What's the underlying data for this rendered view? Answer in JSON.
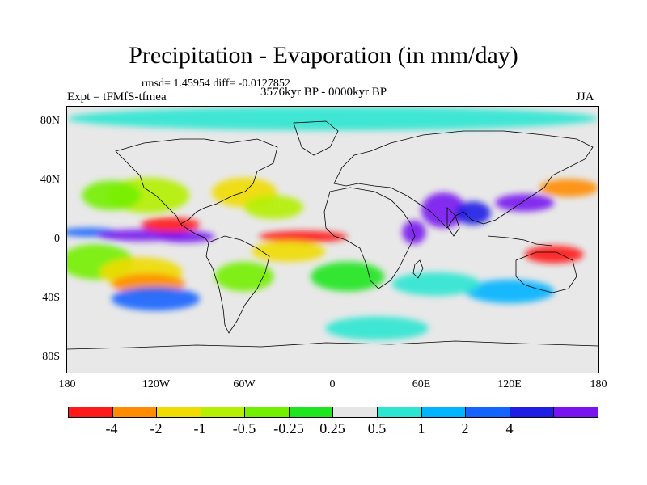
{
  "title": "Precipitation - Evaporation (in mm/day)",
  "stats": "rmsd= 1.45954 diff= -0.0127852",
  "experiment": "Expt = tFMfS-tfmea",
  "period": "3576kyr BP - 0000kyr BP",
  "season": "JJA",
  "map": {
    "projection": "cylindrical-equidistant",
    "lon_range": [
      -180,
      180
    ],
    "lat_range": [
      -90,
      90
    ],
    "y_ticks": [
      {
        "lat": 80,
        "label": "80N"
      },
      {
        "lat": 40,
        "label": "40N"
      },
      {
        "lat": 0,
        "label": "0"
      },
      {
        "lat": -40,
        "label": "40S"
      },
      {
        "lat": -80,
        "label": "80S"
      }
    ],
    "x_ticks": [
      {
        "lon": -180,
        "label": "180"
      },
      {
        "lon": -120,
        "label": "120W"
      },
      {
        "lon": -60,
        "label": "60W"
      },
      {
        "lon": 0,
        "label": "0"
      },
      {
        "lon": 60,
        "label": "60E"
      },
      {
        "lon": 120,
        "label": "120E"
      },
      {
        "lon": 180,
        "label": "180"
      }
    ]
  },
  "colorbar": {
    "colors": [
      "#ff1a1a",
      "#ff8c00",
      "#f0dc00",
      "#b4f000",
      "#73f000",
      "#1ee61e",
      "#e6e6e6",
      "#2de6d2",
      "#00b4ff",
      "#1464ff",
      "#1e1ee6",
      "#7814f0"
    ],
    "labels": [
      "-4",
      "-2",
      "-1",
      "-0.5",
      "-0.25",
      "0.25",
      "0.5",
      "1",
      "2",
      "4"
    ]
  },
  "field_blobs": [
    {
      "lon": -160,
      "lat": -15,
      "rx": 25,
      "ry": 12,
      "level": 4
    },
    {
      "lon": -130,
      "lat": -22,
      "rx": 28,
      "ry": 10,
      "level": 2
    },
    {
      "lon": -125,
      "lat": -30,
      "rx": 25,
      "ry": 7,
      "level": 1
    },
    {
      "lon": -165,
      "lat": 5,
      "rx": 20,
      "ry": 3,
      "level": 9
    },
    {
      "lon": -130,
      "lat": 3,
      "rx": 30,
      "ry": 4,
      "level": 11
    },
    {
      "lon": -100,
      "lat": 2,
      "rx": 20,
      "ry": 4,
      "level": 11
    },
    {
      "lon": -110,
      "lat": 10,
      "rx": 20,
      "ry": 5,
      "level": 0
    },
    {
      "lon": -125,
      "lat": 30,
      "rx": 28,
      "ry": 12,
      "level": 3
    },
    {
      "lon": -150,
      "lat": 30,
      "rx": 20,
      "ry": 10,
      "level": 4
    },
    {
      "lon": -60,
      "lat": 32,
      "rx": 22,
      "ry": 10,
      "level": 2
    },
    {
      "lon": -40,
      "lat": 22,
      "rx": 20,
      "ry": 8,
      "level": 3
    },
    {
      "lon": -20,
      "lat": 2,
      "rx": 30,
      "ry": 4,
      "level": 0
    },
    {
      "lon": -30,
      "lat": -8,
      "rx": 25,
      "ry": 7,
      "level": 2
    },
    {
      "lon": -60,
      "lat": -25,
      "rx": 20,
      "ry": 10,
      "level": 4
    },
    {
      "lon": 10,
      "lat": -25,
      "rx": 25,
      "ry": 10,
      "level": 5
    },
    {
      "lon": 55,
      "lat": 5,
      "rx": 8,
      "ry": 8,
      "level": 11
    },
    {
      "lon": 75,
      "lat": 20,
      "rx": 15,
      "ry": 12,
      "level": 11
    },
    {
      "lon": 95,
      "lat": 18,
      "rx": 12,
      "ry": 8,
      "level": 10
    },
    {
      "lon": 130,
      "lat": 25,
      "rx": 20,
      "ry": 6,
      "level": 11
    },
    {
      "lon": 160,
      "lat": 35,
      "rx": 20,
      "ry": 6,
      "level": 1
    },
    {
      "lon": 150,
      "lat": -10,
      "rx": 20,
      "ry": 6,
      "level": 0
    },
    {
      "lon": 120,
      "lat": -35,
      "rx": 30,
      "ry": 8,
      "level": 8
    },
    {
      "lon": 70,
      "lat": -30,
      "rx": 30,
      "ry": 8,
      "level": 7
    },
    {
      "lon": -120,
      "lat": -40,
      "rx": 30,
      "ry": 8,
      "level": 9
    },
    {
      "lon": 30,
      "lat": -60,
      "rx": 35,
      "ry": 8,
      "level": 7
    },
    {
      "lon": 0,
      "lat": 82,
      "rx": 180,
      "ry": 8,
      "level": 7
    }
  ]
}
